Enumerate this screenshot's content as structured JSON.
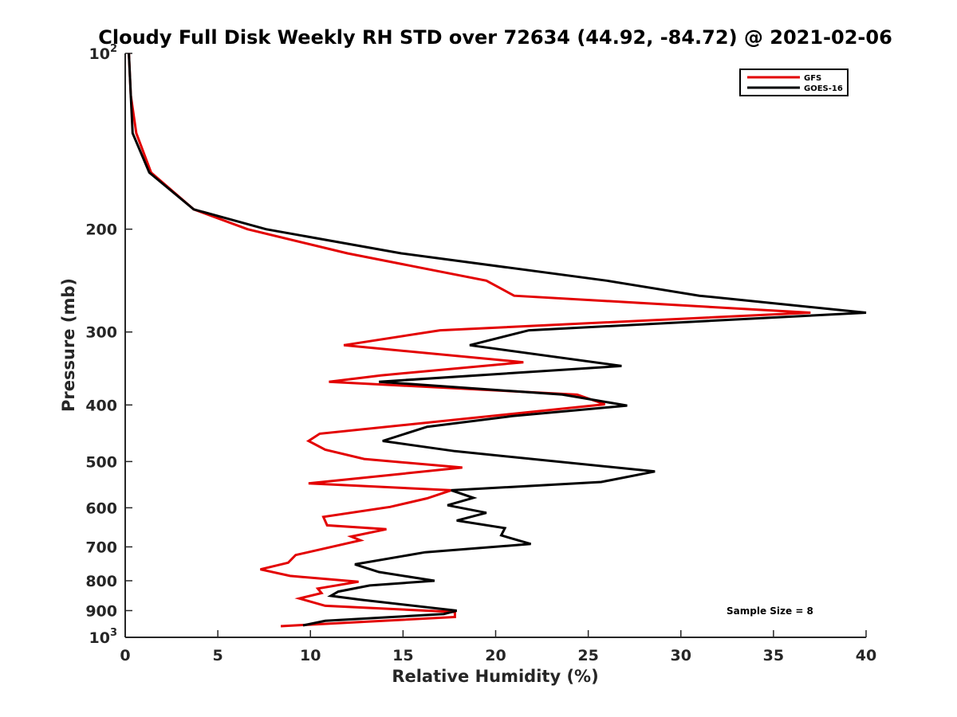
{
  "chart_data": {
    "type": "line",
    "title": "Cloudy Full Disk Weekly RH STD over 72634 (44.92, -84.72) @ 2021-02-06",
    "xlabel": "Relative Humidity (%)",
    "ylabel": "Pressure (mb)",
    "xlim": [
      0,
      40
    ],
    "ylim": [
      100,
      1000
    ],
    "y_scale": "log",
    "y_reversed": true,
    "x_ticks": [
      "0",
      "5",
      "10",
      "15",
      "20",
      "25",
      "30",
      "35",
      "40"
    ],
    "y_ticks": [
      {
        "value": 100,
        "base": "10",
        "exp": "2"
      },
      {
        "value": 200,
        "label": "200"
      },
      {
        "value": 300,
        "label": "300"
      },
      {
        "value": 400,
        "label": "400"
      },
      {
        "value": 500,
        "label": "500"
      },
      {
        "value": 600,
        "label": "600"
      },
      {
        "value": 700,
        "label": "700"
      },
      {
        "value": 800,
        "label": "800"
      },
      {
        "value": 900,
        "label": "900"
      },
      {
        "value": 1000,
        "base": "10",
        "exp": "3"
      }
    ],
    "legend_position": "top-right",
    "annotation": "Sample Size = 8",
    "series": [
      {
        "name": "GFS",
        "color": "#e30000",
        "points": [
          [
            0.2,
            100
          ],
          [
            0.3,
            118
          ],
          [
            0.6,
            137
          ],
          [
            1.4,
            160
          ],
          [
            3.7,
            185
          ],
          [
            6.6,
            200
          ],
          [
            12.0,
            220
          ],
          [
            19.5,
            245
          ],
          [
            21.0,
            260
          ],
          [
            37.0,
            278
          ],
          [
            17.0,
            298
          ],
          [
            11.8,
            316
          ],
          [
            21.5,
            338
          ],
          [
            13.8,
            356
          ],
          [
            11.0,
            365
          ],
          [
            24.4,
            384
          ],
          [
            25.9,
            399
          ],
          [
            10.5,
            448
          ],
          [
            9.9,
            461
          ],
          [
            10.8,
            477
          ],
          [
            12.9,
            495
          ],
          [
            18.2,
            512
          ],
          [
            9.9,
            545
          ],
          [
            17.6,
            560
          ],
          [
            16.3,
            578
          ],
          [
            14.3,
            598
          ],
          [
            10.7,
            622
          ],
          [
            10.9,
            643
          ],
          [
            14.1,
            653
          ],
          [
            12.2,
            672
          ],
          [
            12.7,
            682
          ],
          [
            9.2,
            723
          ],
          [
            8.8,
            745
          ],
          [
            7.3,
            765
          ],
          [
            8.9,
            785
          ],
          [
            12.6,
            803
          ],
          [
            10.4,
            825
          ],
          [
            10.6,
            840
          ],
          [
            9.4,
            858
          ],
          [
            10.8,
            883
          ],
          [
            17.8,
            905
          ],
          [
            17.8,
            923
          ],
          [
            8.4,
            957
          ]
        ]
      },
      {
        "name": "GOES-16",
        "color": "#000000",
        "points": [
          [
            0.2,
            100
          ],
          [
            0.3,
            118
          ],
          [
            0.4,
            137
          ],
          [
            1.3,
            160
          ],
          [
            3.7,
            185
          ],
          [
            7.6,
            200
          ],
          [
            14.9,
            220
          ],
          [
            26.0,
            245
          ],
          [
            31.0,
            260
          ],
          [
            40.0,
            278
          ],
          [
            21.8,
            298
          ],
          [
            18.6,
            316
          ],
          [
            26.8,
            343
          ],
          [
            13.7,
            365
          ],
          [
            23.6,
            384
          ],
          [
            27.1,
            401
          ],
          [
            20.9,
            418
          ],
          [
            16.3,
            436
          ],
          [
            13.9,
            461
          ],
          [
            17.8,
            480
          ],
          [
            28.6,
            520
          ],
          [
            25.7,
            542
          ],
          [
            17.6,
            560
          ],
          [
            18.8,
            577
          ],
          [
            17.4,
            594
          ],
          [
            19.5,
            612
          ],
          [
            17.9,
            631
          ],
          [
            20.5,
            650
          ],
          [
            20.3,
            669
          ],
          [
            21.9,
            692
          ],
          [
            16.2,
            715
          ],
          [
            12.4,
            750
          ],
          [
            13.7,
            773
          ],
          [
            16.7,
            800
          ],
          [
            13.2,
            815
          ],
          [
            11.5,
            835
          ],
          [
            11.1,
            849
          ],
          [
            12.7,
            862
          ],
          [
            17.9,
            900
          ],
          [
            17.2,
            912
          ],
          [
            10.8,
            937
          ],
          [
            9.6,
            954
          ]
        ]
      }
    ]
  }
}
